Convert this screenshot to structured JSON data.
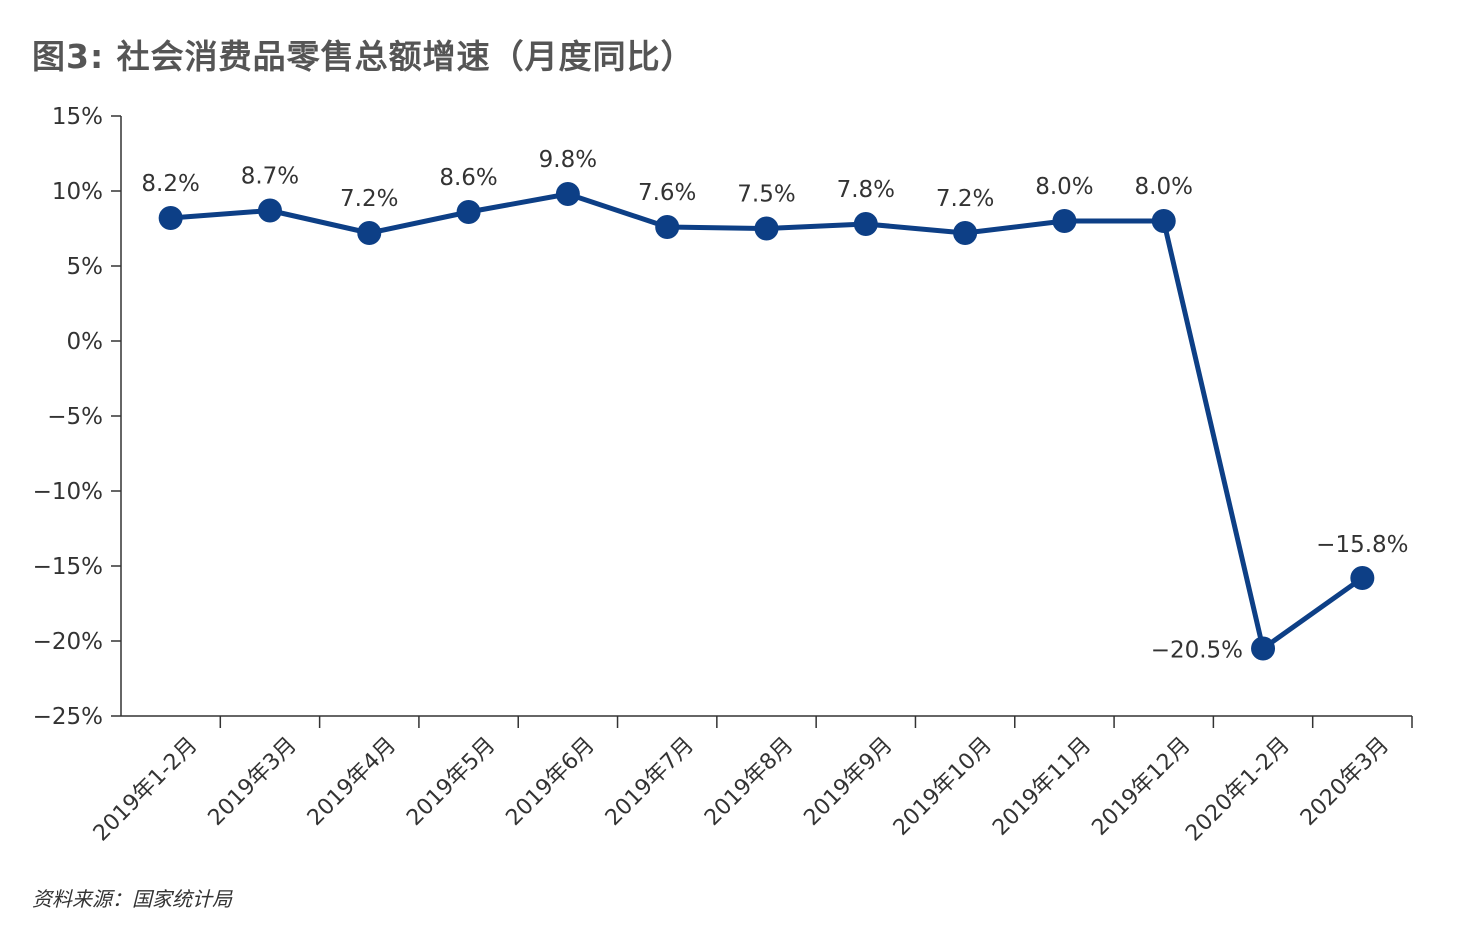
{
  "chart_data": {
    "type": "line",
    "title": "图3: 社会消费品零售总额增速（月度同比）",
    "source": "资料来源：国家统计局",
    "categories": [
      "2019年1-2月",
      "2019年3月",
      "2019年4月",
      "2019年5月",
      "2019年6月",
      "2019年7月",
      "2019年8月",
      "2019年9月",
      "2019年10月",
      "2019年11月",
      "2019年12月",
      "2020年1-2月",
      "2020年3月"
    ],
    "series": [
      {
        "values": [
          8.2,
          8.7,
          7.2,
          8.6,
          9.8,
          7.6,
          7.5,
          7.8,
          7.2,
          8.0,
          8.0,
          -20.5,
          -15.8
        ],
        "labels": [
          "8.2%",
          "8.7%",
          "7.2%",
          "8.6%",
          "9.8%",
          "7.6%",
          "7.5%",
          "7.8%",
          "7.2%",
          "8.0%",
          "8.0%",
          "−20.5%",
          "−15.8%"
        ]
      }
    ],
    "y_ticks": [
      15,
      10,
      5,
      0,
      -5,
      -10,
      -15,
      -20,
      -25
    ],
    "y_tick_labels": [
      "15%",
      "10%",
      "5%",
      "0%",
      "−5%",
      "−10%",
      "−15%",
      "−20%",
      "−25%"
    ],
    "ylim": [
      -25,
      15
    ],
    "grid": false,
    "colors": {
      "line": "#0d3f86",
      "axis": "#333333",
      "title": "#555555"
    }
  }
}
